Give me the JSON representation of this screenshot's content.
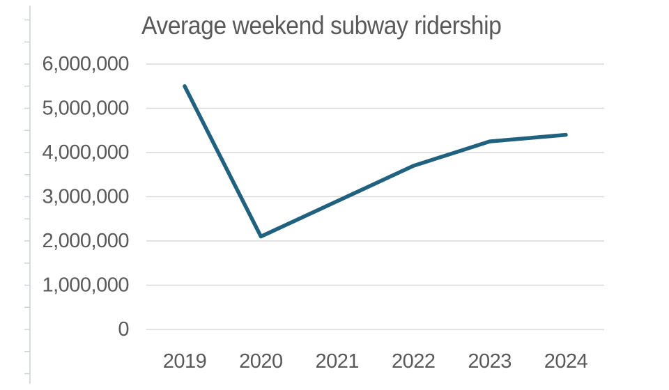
{
  "chart_data": {
    "type": "line",
    "title": "Average weekend subway ridership",
    "categories": [
      "2019",
      "2020",
      "2021",
      "2022",
      "2023",
      "2024"
    ],
    "values": [
      5500000,
      2100000,
      2900000,
      3700000,
      4250000,
      4400000
    ],
    "series": [
      {
        "name": "Average weekend subway ridership",
        "values": [
          5500000,
          2100000,
          2900000,
          3700000,
          4250000,
          4400000
        ]
      }
    ],
    "xlabel": "",
    "ylabel": "",
    "ylim": [
      0,
      6000000
    ],
    "y_ticks": [
      {
        "value": 6000000,
        "label": "6,000,000"
      },
      {
        "value": 5000000,
        "label": "5,000,000"
      },
      {
        "value": 4000000,
        "label": "4,000,000"
      },
      {
        "value": 3000000,
        "label": "3,000,000"
      },
      {
        "value": 2000000,
        "label": "2,000,000"
      },
      {
        "value": 1000000,
        "label": "1,000,000"
      },
      {
        "value": 0,
        "label": "0"
      }
    ],
    "axis_ruler": {
      "top_value": 7000000,
      "bottom_value": -1000000,
      "minor_step": 500000
    },
    "grid": true,
    "legend": "none",
    "colors": {
      "line": "#20617f",
      "text": "#595959",
      "gridline": "#d9d9d9",
      "axis_ruler": "#ccd1d4",
      "background": "#ffffff"
    }
  }
}
